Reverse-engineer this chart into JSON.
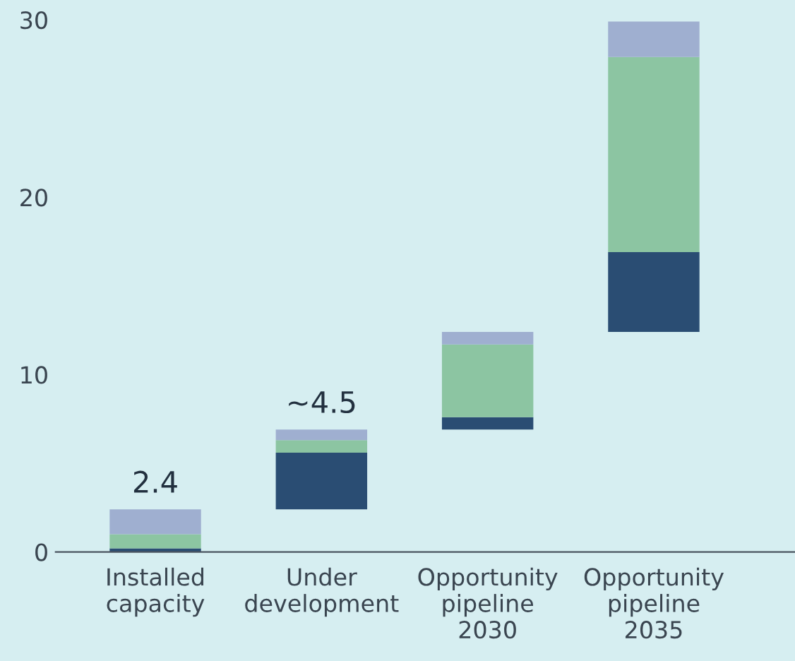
{
  "chart_data": {
    "type": "bar",
    "categories": [
      "Installed\ncapacity",
      "Under\ndevelopment",
      "Opportunity\npipeline\n2030",
      "Opportunity\npipeline\n2035"
    ],
    "series": [
      {
        "color": "#2a4d73",
        "base": [
          0,
          2.4,
          6.9,
          12.4
        ],
        "values": [
          0.2,
          3.2,
          0.7,
          4.5
        ]
      },
      {
        "color": "#8cc5a2",
        "base": [
          0.2,
          5.6,
          7.6,
          16.9
        ],
        "values": [
          0.8,
          0.7,
          4.1,
          11.0
        ]
      },
      {
        "color": "#9fafd0",
        "base": [
          1.0,
          6.3,
          11.7,
          27.9
        ],
        "values": [
          1.4,
          0.6,
          0.7,
          2.0
        ]
      }
    ],
    "totals": [
      "2.4",
      "~4.5",
      null,
      null
    ],
    "ylim": [
      0,
      30
    ],
    "yticks": [
      0,
      10,
      20,
      30
    ],
    "grid": false,
    "legend": false
  }
}
